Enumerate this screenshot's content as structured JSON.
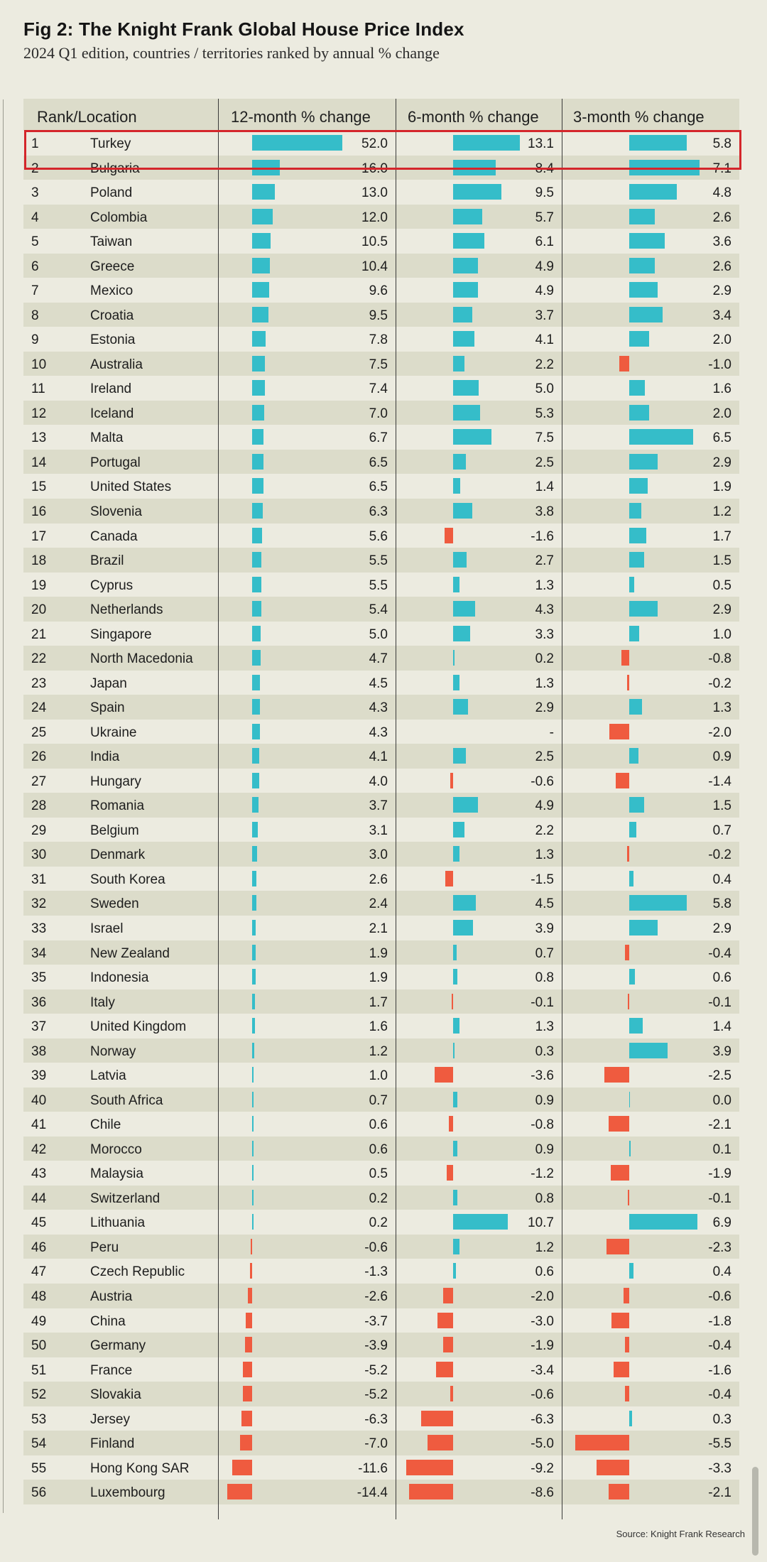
{
  "title": "Fig 2: The Knight Frank Global House Price Index",
  "subtitle": "2024 Q1 edition, countries / territories ranked by annual % change",
  "source": "Source: Knight Frank Research",
  "colors": {
    "positive": "#35bdc9",
    "negative": "#ef5b3f",
    "highlight": "#d4262b"
  },
  "chart_data": {
    "type": "table",
    "columns": [
      "Rank/Location",
      "12-month % change",
      "6-month % change",
      "3-month % change"
    ],
    "highlighted_rank": 1,
    "rows": [
      {
        "rank": "1",
        "location": "Turkey",
        "m12": 52.0,
        "m12_text": "52.0",
        "m6": 13.1,
        "m6_text": "13.1",
        "m3": 5.8,
        "m3_text": "5.8"
      },
      {
        "rank": "2",
        "location": "Bulgaria",
        "m12": 16.0,
        "m12_text": "16.0",
        "m6": 8.4,
        "m6_text": "8.4",
        "m3": 7.1,
        "m3_text": "7.1"
      },
      {
        "rank": "3",
        "location": "Poland",
        "m12": 13.0,
        "m12_text": "13.0",
        "m6": 9.5,
        "m6_text": "9.5",
        "m3": 4.8,
        "m3_text": "4.8"
      },
      {
        "rank": "4",
        "location": "Colombia",
        "m12": 12.0,
        "m12_text": "12.0",
        "m6": 5.7,
        "m6_text": "5.7",
        "m3": 2.6,
        "m3_text": "2.6"
      },
      {
        "rank": "5",
        "location": "Taiwan",
        "m12": 10.5,
        "m12_text": "10.5",
        "m6": 6.1,
        "m6_text": "6.1",
        "m3": 3.6,
        "m3_text": "3.6"
      },
      {
        "rank": "6",
        "location": "Greece",
        "m12": 10.4,
        "m12_text": "10.4",
        "m6": 4.9,
        "m6_text": "4.9",
        "m3": 2.6,
        "m3_text": "2.6"
      },
      {
        "rank": "7",
        "location": "Mexico",
        "m12": 9.6,
        "m12_text": "9.6",
        "m6": 4.9,
        "m6_text": "4.9",
        "m3": 2.9,
        "m3_text": "2.9"
      },
      {
        "rank": "8",
        "location": "Croatia",
        "m12": 9.5,
        "m12_text": "9.5",
        "m6": 3.7,
        "m6_text": "3.7",
        "m3": 3.4,
        "m3_text": "3.4"
      },
      {
        "rank": "9",
        "location": "Estonia",
        "m12": 7.8,
        "m12_text": "7.8",
        "m6": 4.1,
        "m6_text": "4.1",
        "m3": 2.0,
        "m3_text": "2.0"
      },
      {
        "rank": "10",
        "location": "Australia",
        "m12": 7.5,
        "m12_text": "7.5",
        "m6": 2.2,
        "m6_text": "2.2",
        "m3": -1.0,
        "m3_text": "-1.0"
      },
      {
        "rank": "11",
        "location": "Ireland",
        "m12": 7.4,
        "m12_text": "7.4",
        "m6": 5.0,
        "m6_text": "5.0",
        "m3": 1.6,
        "m3_text": "1.6"
      },
      {
        "rank": "12",
        "location": "Iceland",
        "m12": 7.0,
        "m12_text": "7.0",
        "m6": 5.3,
        "m6_text": "5.3",
        "m3": 2.0,
        "m3_text": "2.0"
      },
      {
        "rank": "13",
        "location": "Malta",
        "m12": 6.7,
        "m12_text": "6.7",
        "m6": 7.5,
        "m6_text": "7.5",
        "m3": 6.5,
        "m3_text": "6.5"
      },
      {
        "rank": "14",
        "location": "Portugal",
        "m12": 6.5,
        "m12_text": "6.5",
        "m6": 2.5,
        "m6_text": "2.5",
        "m3": 2.9,
        "m3_text": "2.9"
      },
      {
        "rank": "15",
        "location": "United States",
        "m12": 6.5,
        "m12_text": "6.5",
        "m6": 1.4,
        "m6_text": "1.4",
        "m3": 1.9,
        "m3_text": "1.9"
      },
      {
        "rank": "16",
        "location": "Slovenia",
        "m12": 6.3,
        "m12_text": "6.3",
        "m6": 3.8,
        "m6_text": "3.8",
        "m3": 1.2,
        "m3_text": "1.2"
      },
      {
        "rank": "17",
        "location": "Canada",
        "m12": 5.6,
        "m12_text": "5.6",
        "m6": -1.6,
        "m6_text": "-1.6",
        "m3": 1.7,
        "m3_text": "1.7"
      },
      {
        "rank": "18",
        "location": "Brazil",
        "m12": 5.5,
        "m12_text": "5.5",
        "m6": 2.7,
        "m6_text": "2.7",
        "m3": 1.5,
        "m3_text": "1.5"
      },
      {
        "rank": "19",
        "location": "Cyprus",
        "m12": 5.5,
        "m12_text": "5.5",
        "m6": 1.3,
        "m6_text": "1.3",
        "m3": 0.5,
        "m3_text": "0.5"
      },
      {
        "rank": "20",
        "location": "Netherlands",
        "m12": 5.4,
        "m12_text": "5.4",
        "m6": 4.3,
        "m6_text": "4.3",
        "m3": 2.9,
        "m3_text": "2.9"
      },
      {
        "rank": "21",
        "location": "Singapore",
        "m12": 5.0,
        "m12_text": "5.0",
        "m6": 3.3,
        "m6_text": "3.3",
        "m3": 1.0,
        "m3_text": "1.0"
      },
      {
        "rank": "22",
        "location": "North Macedonia",
        "m12": 4.7,
        "m12_text": "4.7",
        "m6": 0.2,
        "m6_text": "0.2",
        "m3": -0.8,
        "m3_text": "-0.8"
      },
      {
        "rank": "23",
        "location": "Japan",
        "m12": 4.5,
        "m12_text": "4.5",
        "m6": 1.3,
        "m6_text": "1.3",
        "m3": -0.2,
        "m3_text": "-0.2"
      },
      {
        "rank": "24",
        "location": "Spain",
        "m12": 4.3,
        "m12_text": "4.3",
        "m6": 2.9,
        "m6_text": "2.9",
        "m3": 1.3,
        "m3_text": "1.3"
      },
      {
        "rank": "25",
        "location": "Ukraine",
        "m12": 4.3,
        "m12_text": "4.3",
        "m6": null,
        "m6_text": "-",
        "m3": -2.0,
        "m3_text": "-2.0"
      },
      {
        "rank": "26",
        "location": "India",
        "m12": 4.1,
        "m12_text": "4.1",
        "m6": 2.5,
        "m6_text": "2.5",
        "m3": 0.9,
        "m3_text": "0.9"
      },
      {
        "rank": "27",
        "location": "Hungary",
        "m12": 4.0,
        "m12_text": "4.0",
        "m6": -0.6,
        "m6_text": "-0.6",
        "m3": -1.4,
        "m3_text": "-1.4"
      },
      {
        "rank": "28",
        "location": "Romania",
        "m12": 3.7,
        "m12_text": "3.7",
        "m6": 4.9,
        "m6_text": "4.9",
        "m3": 1.5,
        "m3_text": "1.5"
      },
      {
        "rank": "29",
        "location": "Belgium",
        "m12": 3.1,
        "m12_text": "3.1",
        "m6": 2.2,
        "m6_text": "2.2",
        "m3": 0.7,
        "m3_text": "0.7"
      },
      {
        "rank": "30",
        "location": "Denmark",
        "m12": 3.0,
        "m12_text": "3.0",
        "m6": 1.3,
        "m6_text": "1.3",
        "m3": -0.2,
        "m3_text": "-0.2"
      },
      {
        "rank": "31",
        "location": "South Korea",
        "m12": 2.6,
        "m12_text": "2.6",
        "m6": -1.5,
        "m6_text": "-1.5",
        "m3": 0.4,
        "m3_text": "0.4"
      },
      {
        "rank": "32",
        "location": "Sweden",
        "m12": 2.4,
        "m12_text": "2.4",
        "m6": 4.5,
        "m6_text": "4.5",
        "m3": 5.8,
        "m3_text": "5.8"
      },
      {
        "rank": "33",
        "location": "Israel",
        "m12": 2.1,
        "m12_text": "2.1",
        "m6": 3.9,
        "m6_text": "3.9",
        "m3": 2.9,
        "m3_text": "2.9"
      },
      {
        "rank": "34",
        "location": "New Zealand",
        "m12": 1.9,
        "m12_text": "1.9",
        "m6": 0.7,
        "m6_text": "0.7",
        "m3": -0.4,
        "m3_text": "-0.4"
      },
      {
        "rank": "35",
        "location": "Indonesia",
        "m12": 1.9,
        "m12_text": "1.9",
        "m6": 0.8,
        "m6_text": "0.8",
        "m3": 0.6,
        "m3_text": "0.6"
      },
      {
        "rank": "36",
        "location": "Italy",
        "m12": 1.7,
        "m12_text": "1.7",
        "m6": -0.1,
        "m6_text": "-0.1",
        "m3": -0.1,
        "m3_text": "-0.1"
      },
      {
        "rank": "37",
        "location": "United Kingdom",
        "m12": 1.6,
        "m12_text": "1.6",
        "m6": 1.3,
        "m6_text": "1.3",
        "m3": 1.4,
        "m3_text": "1.4"
      },
      {
        "rank": "38",
        "location": "Norway",
        "m12": 1.2,
        "m12_text": "1.2",
        "m6": 0.3,
        "m6_text": "0.3",
        "m3": 3.9,
        "m3_text": "3.9"
      },
      {
        "rank": "39",
        "location": "Latvia",
        "m12": 1.0,
        "m12_text": "1.0",
        "m6": -3.6,
        "m6_text": "-3.6",
        "m3": -2.5,
        "m3_text": "-2.5"
      },
      {
        "rank": "40",
        "location": "South Africa",
        "m12": 0.7,
        "m12_text": "0.7",
        "m6": 0.9,
        "m6_text": "0.9",
        "m3": 0.0,
        "m3_text": "0.0"
      },
      {
        "rank": "41",
        "location": "Chile",
        "m12": 0.6,
        "m12_text": "0.6",
        "m6": -0.8,
        "m6_text": "-0.8",
        "m3": -2.1,
        "m3_text": "-2.1"
      },
      {
        "rank": "42",
        "location": "Morocco",
        "m12": 0.6,
        "m12_text": "0.6",
        "m6": 0.9,
        "m6_text": "0.9",
        "m3": 0.1,
        "m3_text": "0.1"
      },
      {
        "rank": "43",
        "location": "Malaysia",
        "m12": 0.5,
        "m12_text": "0.5",
        "m6": -1.2,
        "m6_text": "-1.2",
        "m3": -1.9,
        "m3_text": "-1.9"
      },
      {
        "rank": "44",
        "location": "Switzerland",
        "m12": 0.2,
        "m12_text": "0.2",
        "m6": 0.8,
        "m6_text": "0.8",
        "m3": -0.1,
        "m3_text": "-0.1"
      },
      {
        "rank": "45",
        "location": "Lithuania",
        "m12": 0.2,
        "m12_text": "0.2",
        "m6": 10.7,
        "m6_text": "10.7",
        "m3": 6.9,
        "m3_text": "6.9"
      },
      {
        "rank": "46",
        "location": "Peru",
        "m12": -0.6,
        "m12_text": "-0.6",
        "m6": 1.2,
        "m6_text": "1.2",
        "m3": -2.3,
        "m3_text": "-2.3"
      },
      {
        "rank": "47",
        "location": "Czech Republic",
        "m12": -1.3,
        "m12_text": "-1.3",
        "m6": 0.6,
        "m6_text": "0.6",
        "m3": 0.4,
        "m3_text": "0.4"
      },
      {
        "rank": "48",
        "location": "Austria",
        "m12": -2.6,
        "m12_text": "-2.6",
        "m6": -2.0,
        "m6_text": "-2.0",
        "m3": -0.6,
        "m3_text": "-0.6"
      },
      {
        "rank": "49",
        "location": "China",
        "m12": -3.7,
        "m12_text": "-3.7",
        "m6": -3.0,
        "m6_text": "-3.0",
        "m3": -1.8,
        "m3_text": "-1.8"
      },
      {
        "rank": "50",
        "location": "Germany",
        "m12": -3.9,
        "m12_text": "-3.9",
        "m6": -1.9,
        "m6_text": "-1.9",
        "m3": -0.4,
        "m3_text": "-0.4"
      },
      {
        "rank": "51",
        "location": "France",
        "m12": -5.2,
        "m12_text": "-5.2",
        "m6": -3.4,
        "m6_text": "-3.4",
        "m3": -1.6,
        "m3_text": "-1.6"
      },
      {
        "rank": "52",
        "location": "Slovakia",
        "m12": -5.2,
        "m12_text": "-5.2",
        "m6": -0.6,
        "m6_text": "-0.6",
        "m3": -0.4,
        "m3_text": "-0.4"
      },
      {
        "rank": "53",
        "location": "Jersey",
        "m12": -6.3,
        "m12_text": "-6.3",
        "m6": -6.3,
        "m6_text": "-6.3",
        "m3": 0.3,
        "m3_text": "0.3"
      },
      {
        "rank": "54",
        "location": "Finland",
        "m12": -7.0,
        "m12_text": "-7.0",
        "m6": -5.0,
        "m6_text": "-5.0",
        "m3": -5.5,
        "m3_text": "-5.5"
      },
      {
        "rank": "55",
        "location": "Hong Kong SAR",
        "m12": -11.6,
        "m12_text": "-11.6",
        "m6": -9.2,
        "m6_text": "-9.2",
        "m3": -3.3,
        "m3_text": "-3.3"
      },
      {
        "rank": "56",
        "location": "Luxembourg",
        "m12": -14.4,
        "m12_text": "-14.4",
        "m6": -8.6,
        "m6_text": "-8.6",
        "m3": -2.1,
        "m3_text": "-2.1"
      }
    ]
  }
}
